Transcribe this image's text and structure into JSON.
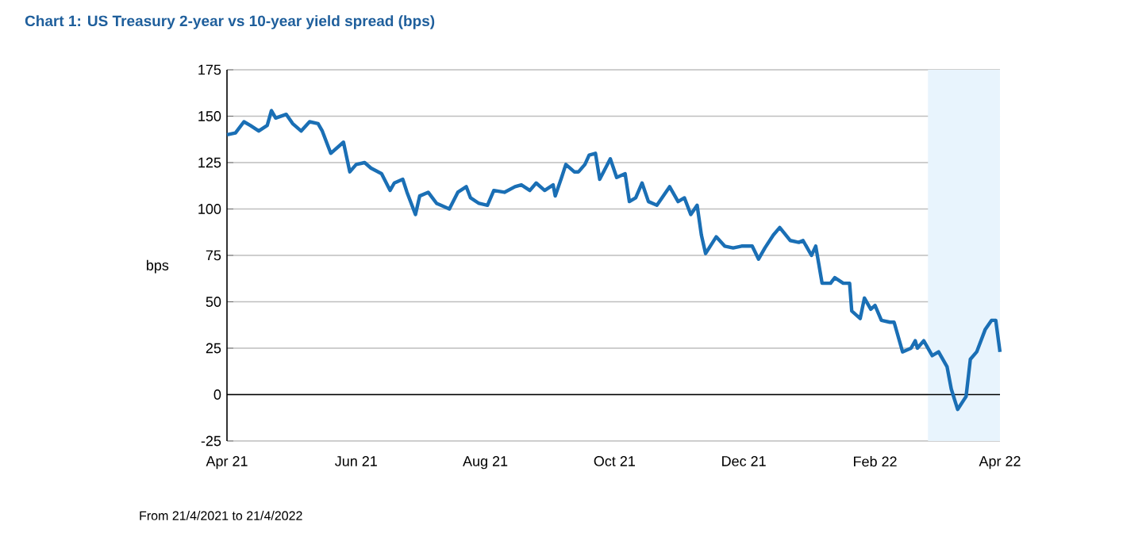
{
  "chart_data": {
    "type": "line",
    "title": "Chart 1: US Treasury 2-year vs 10-year yield spread (bps)",
    "ylabel": "bps",
    "annotations": [
      "From 21/4/2021 to 21/4/2022"
    ],
    "xlim": [
      "2021-04-21",
      "2022-04-21"
    ],
    "xticks": [
      {
        "value": "2021-04-21",
        "label": "Apr 21"
      },
      {
        "value": "2021-06-21",
        "label": "Jun 21"
      },
      {
        "value": "2021-08-21",
        "label": "Aug 21"
      },
      {
        "value": "2021-10-21",
        "label": "Oct 21"
      },
      {
        "value": "2021-12-21",
        "label": "Dec 21"
      },
      {
        "value": "2022-02-21",
        "label": "Feb 22"
      },
      {
        "value": "2022-04-21",
        "label": "Apr 22"
      }
    ],
    "ylim": [
      -25,
      175
    ],
    "yticks": [
      -25,
      0,
      25,
      50,
      75,
      100,
      125,
      150,
      175
    ],
    "grid": "y",
    "ref_lines": [
      {
        "axis": "y",
        "value": 0,
        "color": "#000000"
      }
    ],
    "bands": [
      {
        "axis": "x",
        "from": "2022-03-18",
        "to": "2022-04-21",
        "color": "#e8f4fd"
      }
    ],
    "x": [
      "2021-04-21",
      "2021-04-25",
      "2021-04-29",
      "2021-05-02",
      "2021-05-06",
      "2021-05-10",
      "2021-05-12",
      "2021-05-14",
      "2021-05-19",
      "2021-05-22",
      "2021-05-26",
      "2021-05-30",
      "2021-06-03",
      "2021-06-05",
      "2021-06-09",
      "2021-06-15",
      "2021-06-18",
      "2021-06-21",
      "2021-06-25",
      "2021-06-28",
      "2021-07-03",
      "2021-07-07",
      "2021-07-09",
      "2021-07-13",
      "2021-07-15",
      "2021-07-19",
      "2021-07-21",
      "2021-07-25",
      "2021-07-29",
      "2021-07-31",
      "2021-08-04",
      "2021-08-08",
      "2021-08-12",
      "2021-08-14",
      "2021-08-18",
      "2021-08-22",
      "2021-08-25",
      "2021-08-30",
      "2021-09-04",
      "2021-09-07",
      "2021-09-11",
      "2021-09-14",
      "2021-09-18",
      "2021-09-22",
      "2021-09-23",
      "2021-09-26",
      "2021-09-28",
      "2021-10-02",
      "2021-10-04",
      "2021-10-07",
      "2021-10-09",
      "2021-10-12",
      "2021-10-14",
      "2021-10-19",
      "2021-10-22",
      "2021-10-26",
      "2021-10-28",
      "2021-10-31",
      "2021-11-03",
      "2021-11-06",
      "2021-11-10",
      "2021-11-16",
      "2021-11-20",
      "2021-11-23",
      "2021-11-26",
      "2021-11-29",
      "2021-12-01",
      "2021-12-03",
      "2021-12-08",
      "2021-12-12",
      "2021-12-16",
      "2021-12-20",
      "2021-12-25",
      "2021-12-28",
      "2021-12-31",
      "2022-01-04",
      "2022-01-07",
      "2022-01-12",
      "2022-01-16",
      "2022-01-18",
      "2022-01-22",
      "2022-01-24",
      "2022-01-27",
      "2022-01-31",
      "2022-02-02",
      "2022-02-06",
      "2022-02-09",
      "2022-02-10",
      "2022-02-14",
      "2022-02-16",
      "2022-02-19",
      "2022-02-21",
      "2022-02-24",
      "2022-02-28",
      "2022-03-02",
      "2022-03-06",
      "2022-03-10",
      "2022-03-12",
      "2022-03-13",
      "2022-03-16",
      "2022-03-20",
      "2022-03-23",
      "2022-03-27",
      "2022-03-29",
      "2022-04-01",
      "2022-04-05",
      "2022-04-07",
      "2022-04-10",
      "2022-04-14",
      "2022-04-17",
      "2022-04-19",
      "2022-04-21"
    ],
    "series": [
      {
        "color": "#1a6fb5",
        "values": [
          140,
          141,
          147,
          145,
          142,
          145,
          153,
          149,
          151,
          146,
          142,
          147,
          146,
          142,
          130,
          136,
          120,
          124,
          125,
          122,
          119,
          110,
          114,
          116,
          109,
          97,
          107,
          109,
          103,
          102,
          100,
          109,
          112,
          106,
          103,
          102,
          110,
          109,
          112,
          113,
          110,
          114,
          110,
          113,
          107,
          117,
          124,
          120,
          120,
          124,
          129,
          130,
          116,
          127,
          117,
          119,
          104,
          106,
          114,
          104,
          102,
          112,
          104,
          106,
          97,
          102,
          86,
          76,
          85,
          80,
          79,
          80,
          80,
          73,
          79,
          86,
          90,
          83,
          82,
          83,
          75,
          80,
          60,
          60,
          63,
          60,
          60,
          45,
          41,
          52,
          46,
          48,
          40,
          39,
          39,
          23,
          25,
          29,
          25,
          29,
          21,
          23,
          15,
          3,
          -8,
          -1,
          19,
          23,
          35,
          40,
          40,
          23
        ]
      }
    ]
  }
}
